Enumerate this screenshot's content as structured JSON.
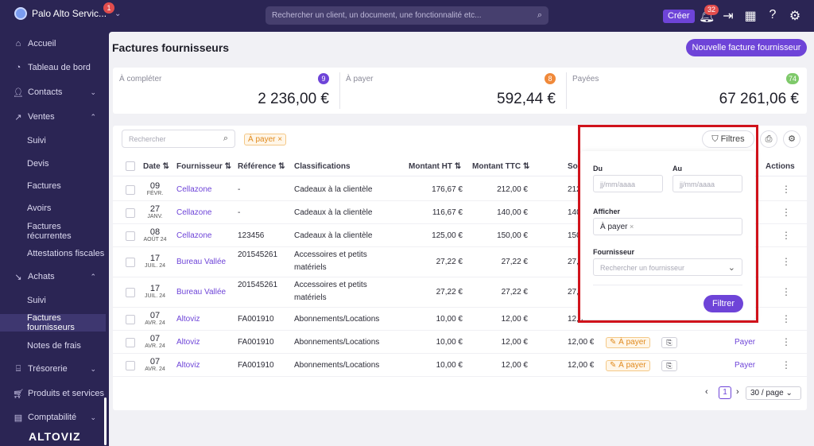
{
  "app": {
    "title": "Palo Alto Servic...",
    "notif_badge": "1"
  },
  "search": {
    "placeholder": "Rechercher un client, un document, une fonctionnalité etc..."
  },
  "topbar": {
    "create": "Créer",
    "notif_count": "32"
  },
  "sidebar": {
    "items": [
      {
        "label": "Accueil",
        "icon": "home-icon"
      },
      {
        "label": "Tableau de bord",
        "icon": "dashboard-icon"
      },
      {
        "label": "Contacts",
        "icon": "user-icon"
      },
      {
        "label": "Ventes",
        "icon": "trend-icon"
      },
      {
        "label": "Suivi"
      },
      {
        "label": "Devis"
      },
      {
        "label": "Factures"
      },
      {
        "label": "Avoirs"
      },
      {
        "label": "Factures récurrentes"
      },
      {
        "label": "Attestations fiscales"
      },
      {
        "label": "Achats",
        "icon": "trend-down-icon"
      },
      {
        "label": "Suivi"
      },
      {
        "label": "Factures fournisseurs"
      },
      {
        "label": "Notes de frais"
      },
      {
        "label": "Trésorerie",
        "icon": "bank-icon"
      },
      {
        "label": "Produits et services",
        "icon": "cart-icon"
      },
      {
        "label": "Comptabilité",
        "icon": "ledger-icon"
      }
    ],
    "logo": "ALTOVIZ"
  },
  "page": {
    "title": "Factures fournisseurs",
    "new_button": "Nouvelle facture fournisseur"
  },
  "stats": [
    {
      "label": "À compléter",
      "badge": "9",
      "value": "2 236,00 €",
      "color": "#6e44d8"
    },
    {
      "label": "À payer",
      "badge": "8",
      "value": "592,44 €",
      "color": "#f0893a"
    },
    {
      "label": "Payées",
      "badge": "74",
      "value": "67 261,06 €",
      "color": "#7ec96a"
    }
  ],
  "table": {
    "search_placeholder": "Rechercher",
    "filter_tag": "À payer ×",
    "filters_label": "Filtres",
    "columns": {
      "date": "Date",
      "supplier": "Fournisseur",
      "reference": "Référence",
      "classification": "Classifications",
      "ht": "Montant HT",
      "ttc": "Montant TTC",
      "solde": "Sold",
      "actions": "Actions"
    },
    "rows": [
      {
        "day": "09",
        "month": "FÉVR.",
        "supplier": "Cellazone",
        "reference": "-",
        "classification": "Cadeaux à la clientèle",
        "classification2": "",
        "ht": "176,67 €",
        "ttc": "212,00 €",
        "solde": "212,0"
      },
      {
        "day": "27",
        "month": "JANV.",
        "supplier": "Cellazone",
        "reference": "-",
        "classification": "Cadeaux à la clientèle",
        "classification2": "",
        "ht": "116,67 €",
        "ttc": "140,00 €",
        "solde": "140,0"
      },
      {
        "day": "08",
        "month": "AOÛT 24",
        "supplier": "Cellazone",
        "reference": "123456",
        "classification": "Cadeaux à la clientèle",
        "classification2": "",
        "ht": "125,00 €",
        "ttc": "150,00 €",
        "solde": "150,0"
      },
      {
        "day": "17",
        "month": "JUIL. 24",
        "supplier": "Bureau Vallée",
        "reference": "201545261",
        "classification": "Accessoires et petits",
        "classification2": "matériels",
        "ht": "27,22 €",
        "ttc": "27,22 €",
        "solde": "27,2"
      },
      {
        "day": "17",
        "month": "JUIL. 24",
        "supplier": "Bureau Vallée",
        "reference": "201545261",
        "classification": "Accessoires et petits",
        "classification2": "matériels",
        "ht": "27,22 €",
        "ttc": "27,22 €",
        "solde": "27,2"
      },
      {
        "day": "07",
        "month": "AVR. 24",
        "supplier": "Altoviz",
        "reference": "FA001910",
        "classification": "Abonnements/Locations",
        "classification2": "",
        "ht": "10,00 €",
        "ttc": "12,00 €",
        "solde": "12,0"
      },
      {
        "day": "07",
        "month": "AVR. 24",
        "supplier": "Altoviz",
        "reference": "FA001910",
        "classification": "Abonnements/Locations",
        "classification2": "",
        "ht": "10,00 €",
        "ttc": "12,00 €",
        "solde": "12,00 €",
        "status": "À payer",
        "action": "Payer"
      },
      {
        "day": "07",
        "month": "AVR. 24",
        "supplier": "Altoviz",
        "reference": "FA001910",
        "classification": "Abonnements/Locations",
        "classification2": "",
        "ht": "10,00 €",
        "ttc": "12,00 €",
        "solde": "12,00 €",
        "status": "À payer",
        "action": "Payer"
      }
    ],
    "pagination": {
      "page": "1",
      "per_page": "30 / page"
    }
  },
  "filter_popover": {
    "from_label": "Du",
    "to_label": "Au",
    "date_placeholder": "jj/mm/aaaa",
    "show_label": "Afficher",
    "show_value": "À payer",
    "supplier_label": "Fournisseur",
    "supplier_placeholder": "Rechercher un fournisseur",
    "submit": "Filtrer"
  },
  "colors": {
    "accent": "#6e44d8",
    "sidebar": "#2b2554",
    "highlight": "#d0121b"
  }
}
